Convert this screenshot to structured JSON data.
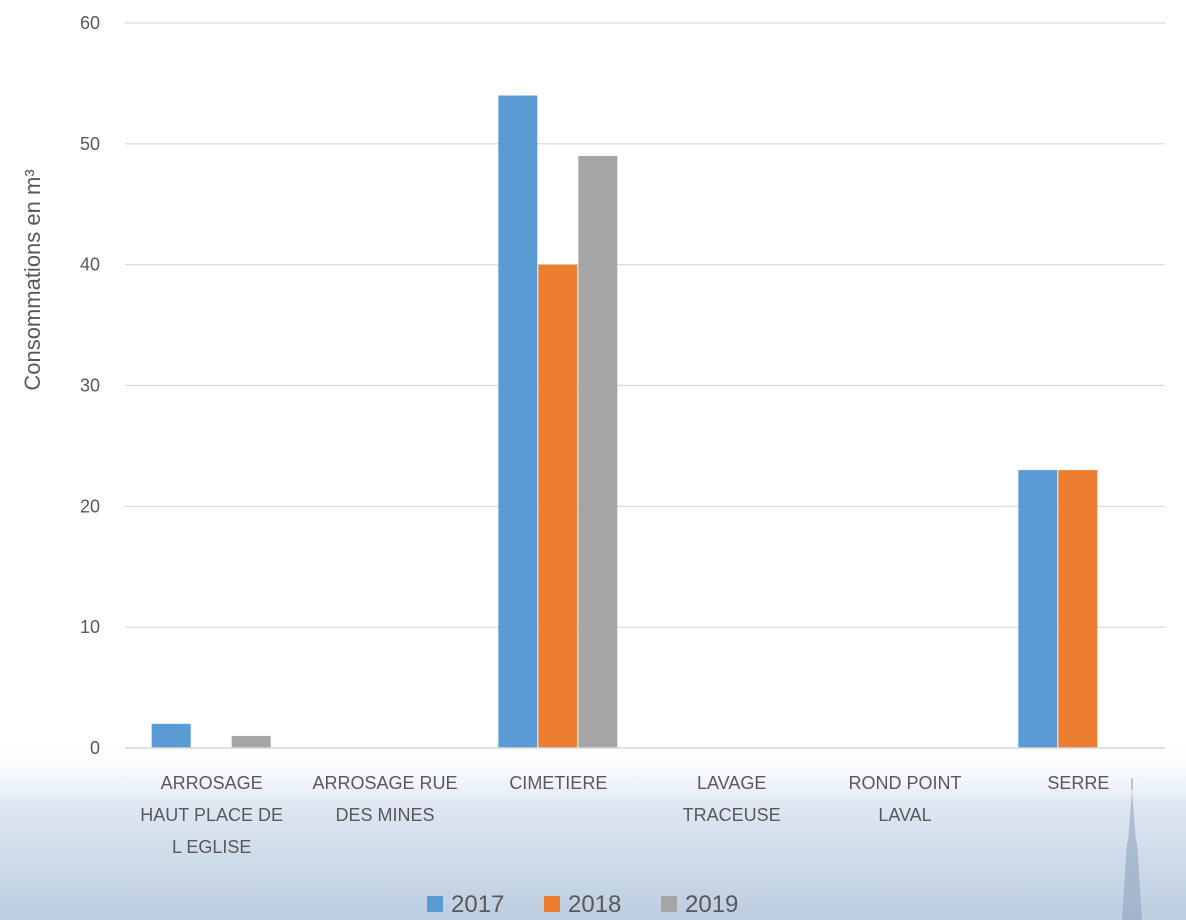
{
  "chart_data": {
    "type": "bar",
    "categories": [
      [
        "ARROSAGE",
        "HAUT PLACE DE",
        "L EGLISE"
      ],
      [
        "ARROSAGE RUE",
        "DES MINES"
      ],
      [
        "CIMETIERE"
      ],
      [
        "LAVAGE",
        "TRACEUSE"
      ],
      [
        "ROND POINT",
        "LAVAL"
      ],
      [
        "SERRE"
      ]
    ],
    "series": [
      {
        "name": "2017",
        "color": "#5b9bd5",
        "values": [
          2,
          0,
          54,
          0,
          0,
          23
        ]
      },
      {
        "name": "2018",
        "color": "#ed7d31",
        "values": [
          0,
          0,
          40,
          0,
          0,
          23
        ]
      },
      {
        "name": "2019",
        "color": "#a5a5a5",
        "values": [
          1,
          0,
          49,
          0,
          0,
          0
        ]
      }
    ],
    "ylabel": "Consommations en m³",
    "ylim": [
      0,
      60
    ],
    "yticks": [
      0,
      10,
      20,
      30,
      40,
      50,
      60
    ],
    "grid": true,
    "legend_position": "bottom"
  }
}
